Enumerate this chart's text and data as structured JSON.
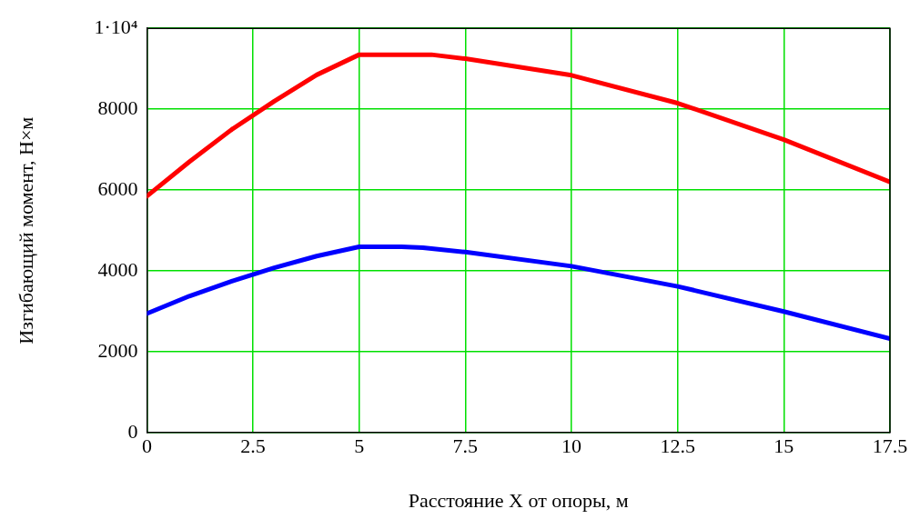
{
  "chart_data": {
    "type": "line",
    "xlabel": "Расстояние X от опоры, м",
    "ylabel": "Изгибающий момент, Н×м",
    "xlim": [
      0,
      17.5
    ],
    "xticks": [
      0,
      2.5,
      5,
      7.5,
      10,
      12.5,
      15,
      17.5
    ],
    "ylim": [
      0,
      10000
    ],
    "yticks": [
      0,
      2000,
      4000,
      6000,
      8000,
      {
        "value": 10000,
        "label": "1·10⁴"
      }
    ],
    "grid": true,
    "legend": false,
    "marker": "none",
    "line_style": "solid",
    "series": [
      {
        "color": "#ff0000",
        "x": [
          0,
          1,
          2,
          3,
          4,
          5,
          6,
          6.7,
          7.5,
          10,
          12.5,
          15,
          17.5
        ],
        "values": [
          5850,
          6700,
          7500,
          8200,
          8850,
          9350,
          9350,
          9350,
          9250,
          8840,
          8150,
          7250,
          6200
        ]
      },
      {
        "color": "#0000ff",
        "x": [
          0,
          1,
          2,
          3,
          4,
          5,
          6,
          6.5,
          7.5,
          10,
          12.5,
          15,
          17.5
        ],
        "values": [
          2950,
          3380,
          3750,
          4080,
          4370,
          4600,
          4600,
          4580,
          4470,
          4120,
          3620,
          3000,
          2330
        ]
      }
    ]
  }
}
